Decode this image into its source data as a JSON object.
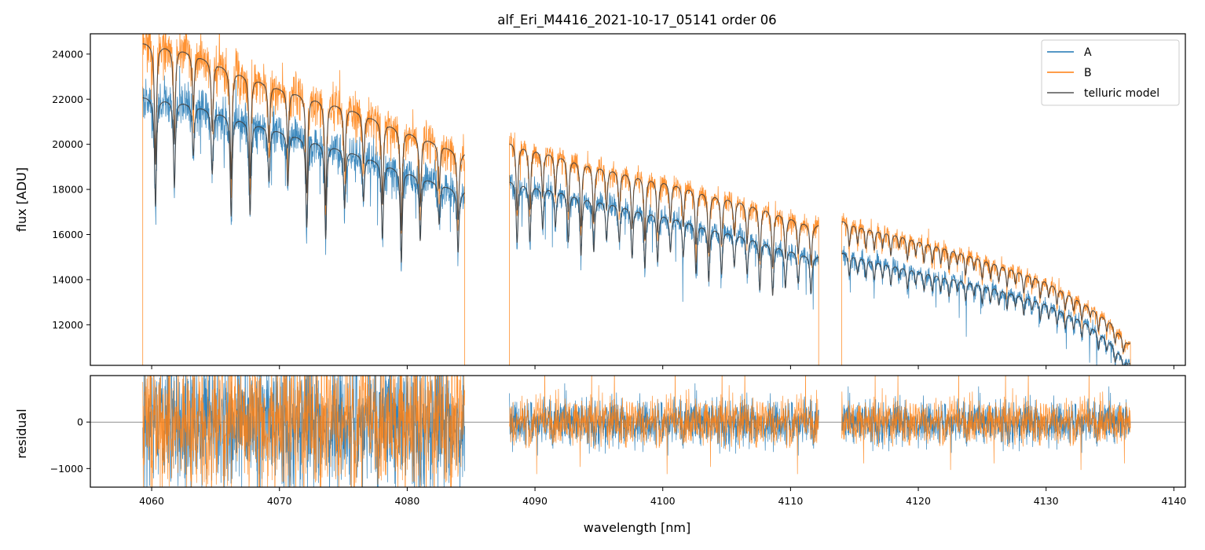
{
  "chart_data": {
    "type": "line",
    "title": "alf_Eri_M4416_2021-10-17_05141  order 06",
    "xlabel": "wavelength [nm]",
    "xlim": [
      4055.2,
      4140.9
    ],
    "xticks": [
      4060,
      4070,
      4080,
      4090,
      4100,
      4110,
      4120,
      4130,
      4140
    ],
    "colors": {
      "A": "#1f77b4",
      "B": "#ff7f0e",
      "model": "#404040"
    },
    "legend": {
      "location": "top-right",
      "entries": [
        {
          "label": "A",
          "color": "#1f77b4"
        },
        {
          "label": "B",
          "color": "#ff7f0e"
        },
        {
          "label": "telluric model",
          "color": "#555555"
        }
      ]
    },
    "panels": [
      {
        "name": "flux",
        "ylabel": "flux [ADU]",
        "ylim": [
          10200,
          24900
        ],
        "yticks": [
          12000,
          14000,
          16000,
          18000,
          20000,
          22000,
          24000
        ],
        "segments": [
          {
            "x_start": 4059.3,
            "x_end": 4084.5
          },
          {
            "x_start": 4088.0,
            "x_end": 4112.2
          },
          {
            "x_start": 4114.0,
            "x_end": 4136.6
          }
        ],
        "series": [
          {
            "name": "A",
            "continuum": [
              [
                4059.5,
                22100
              ],
              [
                4062.0,
                21950
              ],
              [
                4066.0,
                21300
              ],
              [
                4070.0,
                20600
              ],
              [
                4075.0,
                19800
              ],
              [
                4080.0,
                18800
              ],
              [
                4084.3,
                17900
              ],
              [
                4088.2,
                18400
              ],
              [
                4092.0,
                17950
              ],
              [
                4096.0,
                17400
              ],
              [
                4100.0,
                16900
              ],
              [
                4104.0,
                16300
              ],
              [
                4108.0,
                15700
              ],
              [
                4111.8,
                15000
              ],
              [
                4114.2,
                15200
              ],
              [
                4118.0,
                14700
              ],
              [
                4122.0,
                14200
              ],
              [
                4126.0,
                13700
              ],
              [
                4130.0,
                13000
              ],
              [
                4133.0,
                12200
              ],
              [
                4135.0,
                11300
              ],
              [
                4136.4,
                10300
              ]
            ]
          },
          {
            "name": "B",
            "continuum": [
              [
                4059.5,
                24500
              ],
              [
                4062.0,
                24300
              ],
              [
                4066.0,
                23400
              ],
              [
                4070.0,
                22500
              ],
              [
                4075.0,
                21700
              ],
              [
                4080.0,
                20600
              ],
              [
                4084.3,
                19600
              ],
              [
                4088.2,
                20100
              ],
              [
                4092.0,
                19500
              ],
              [
                4096.0,
                18900
              ],
              [
                4100.0,
                18400
              ],
              [
                4104.0,
                17800
              ],
              [
                4108.0,
                17200
              ],
              [
                4111.8,
                16400
              ],
              [
                4114.2,
                16600
              ],
              [
                4118.0,
                16100
              ],
              [
                4122.0,
                15500
              ],
              [
                4126.0,
                14800
              ],
              [
                4130.0,
                14000
              ],
              [
                4133.0,
                13000
              ],
              [
                4135.0,
                12200
              ],
              [
                4136.4,
                11200
              ]
            ]
          }
        ]
      },
      {
        "name": "residual",
        "ylabel": "residual",
        "ylim": [
          -1400,
          1000
        ],
        "yticks": [
          -1000,
          0
        ],
        "reference_line": 0,
        "segments": [
          {
            "x_start": 4059.6,
            "x_end": 4084.4,
            "amplitude": 700
          },
          {
            "x_start": 4088.0,
            "x_end": 4112.0,
            "amplitude": 250
          },
          {
            "x_start": 4114.0,
            "x_end": 4136.5,
            "amplitude": 230
          }
        ]
      }
    ]
  }
}
